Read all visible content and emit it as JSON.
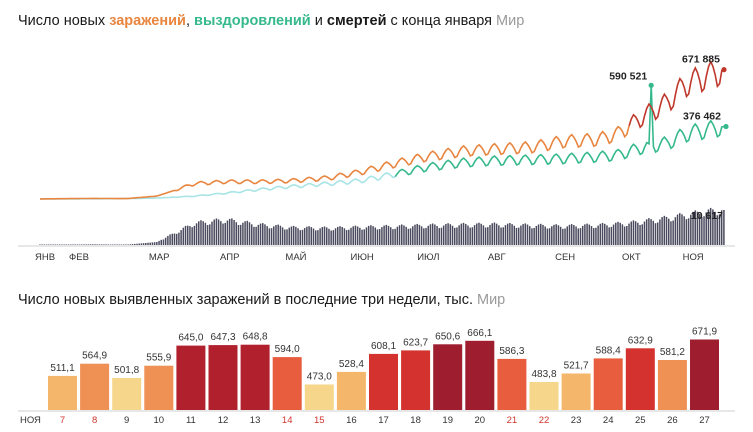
{
  "header": {
    "prefix": "Число новых ",
    "infections": "заражений",
    "sep1": ", ",
    "recoveries": "выздоровлений",
    "sep2": " и ",
    "deaths": "смертей",
    "suffix": " с конца января",
    "region": "Мир"
  },
  "header2": {
    "text": "Число новых выявленных заражений в последние три недели, тыс.",
    "region": "Мир"
  },
  "colors": {
    "infections": "#e8853f",
    "infections_late": "#c0382b",
    "recoveries": "#35b98c",
    "recoveries_early": "#a8e4e6",
    "deaths": "#4a4a5e"
  },
  "chart_data": [
    {
      "type": "line",
      "months": [
        "ЯНВ",
        "ФЕВ",
        "МАР",
        "АПР",
        "МАЙ",
        "ИЮН",
        "ИЮЛ",
        "АВГ",
        "СЕН",
        "ОКТ",
        "НОЯ"
      ],
      "annotations": [
        {
          "series": "infections",
          "label": "671 885",
          "value": 671885
        },
        {
          "series": "recoveries",
          "label": "590 521",
          "value": 590521
        },
        {
          "series": "recoveries",
          "label": "376 462",
          "value": 376462
        },
        {
          "series": "deaths",
          "label": "10 617",
          "value": 10617
        }
      ],
      "series": [
        {
          "name": "заражений",
          "key": "infections",
          "x_range": [
            "2020-01-22",
            "2020-11-27"
          ],
          "anchors": [
            [
              "2020-01-22",
              500
            ],
            [
              "2020-02-15",
              3000
            ],
            [
              "2020-03-01",
              2000
            ],
            [
              "2020-03-15",
              15000
            ],
            [
              "2020-04-01",
              80000
            ],
            [
              "2020-04-15",
              90000
            ],
            [
              "2020-05-01",
              90000
            ],
            [
              "2020-05-15",
              95000
            ],
            [
              "2020-06-01",
              110000
            ],
            [
              "2020-06-15",
              140000
            ],
            [
              "2020-07-01",
              185000
            ],
            [
              "2020-07-15",
              220000
            ],
            [
              "2020-08-01",
              250000
            ],
            [
              "2020-08-15",
              260000
            ],
            [
              "2020-09-01",
              270000
            ],
            [
              "2020-09-15",
              300000
            ],
            [
              "2020-10-01",
              310000
            ],
            [
              "2020-10-10",
              340000
            ],
            [
              "2020-10-20",
              420000
            ],
            [
              "2020-11-01",
              500000
            ],
            [
              "2020-11-10",
              600000
            ],
            [
              "2020-11-27",
              671885
            ]
          ]
        },
        {
          "name": "выздоровлений",
          "key": "recoveries",
          "x_range": [
            "2020-01-22",
            "2020-11-27"
          ],
          "anchors": [
            [
              "2020-01-22",
              0
            ],
            [
              "2020-02-15",
              1000
            ],
            [
              "2020-03-01",
              2000
            ],
            [
              "2020-03-15",
              5000
            ],
            [
              "2020-04-01",
              15000
            ],
            [
              "2020-04-15",
              30000
            ],
            [
              "2020-05-01",
              50000
            ],
            [
              "2020-05-15",
              65000
            ],
            [
              "2020-06-01",
              80000
            ],
            [
              "2020-06-15",
              95000
            ],
            [
              "2020-07-01",
              130000
            ],
            [
              "2020-07-15",
              165000
            ],
            [
              "2020-08-01",
              190000
            ],
            [
              "2020-08-15",
              200000
            ],
            [
              "2020-09-01",
              205000
            ],
            [
              "2020-09-15",
              210000
            ],
            [
              "2020-10-01",
              220000
            ],
            [
              "2020-10-10",
              230000
            ],
            [
              "2020-10-20",
              265000
            ],
            [
              "2020-11-01",
              290000
            ],
            [
              "2020-11-10",
              340000
            ],
            [
              "2020-11-27",
              376462
            ]
          ],
          "spike": [
            "2020-10-25",
            590521
          ]
        },
        {
          "name": "смертей",
          "key": "deaths",
          "x_range": [
            "2020-01-22",
            "2020-11-27"
          ],
          "anchors": [
            [
              "2020-01-22",
              0
            ],
            [
              "2020-02-15",
              200
            ],
            [
              "2020-03-01",
              100
            ],
            [
              "2020-03-15",
              900
            ],
            [
              "2020-04-01",
              6500
            ],
            [
              "2020-04-15",
              7500
            ],
            [
              "2020-05-01",
              6000
            ],
            [
              "2020-05-15",
              5200
            ],
            [
              "2020-06-01",
              5000
            ],
            [
              "2020-06-15",
              5300
            ],
            [
              "2020-07-01",
              5500
            ],
            [
              "2020-07-15",
              5800
            ],
            [
              "2020-08-01",
              6000
            ],
            [
              "2020-08-15",
              6100
            ],
            [
              "2020-09-01",
              5800
            ],
            [
              "2020-09-15",
              5600
            ],
            [
              "2020-10-01",
              5900
            ],
            [
              "2020-10-15",
              6500
            ],
            [
              "2020-11-01",
              8000
            ],
            [
              "2020-11-15",
              9500
            ],
            [
              "2020-11-27",
              10617
            ]
          ]
        }
      ]
    },
    {
      "type": "bar",
      "month_label": "НОЯ",
      "categories": [
        "7",
        "8",
        "9",
        "10",
        "11",
        "12",
        "13",
        "14",
        "15",
        "16",
        "17",
        "18",
        "19",
        "20",
        "21",
        "22",
        "23",
        "24",
        "25",
        "26",
        "27"
      ],
      "weekend": [
        true,
        true,
        false,
        false,
        false,
        false,
        false,
        true,
        true,
        false,
        false,
        false,
        false,
        false,
        true,
        true,
        false,
        false,
        false,
        false,
        false
      ],
      "values": [
        511.1,
        564.9,
        501.8,
        555.9,
        645.0,
        647.3,
        648.8,
        594.0,
        473.0,
        528.4,
        608.1,
        623.7,
        650.6,
        666.1,
        586.3,
        483.8,
        521.7,
        588.4,
        632.9,
        581.2,
        671.9
      ],
      "value_labels": [
        "511,1",
        "564,9",
        "501,8",
        "555,9",
        "645,0",
        "647,3",
        "648,8",
        "594,0",
        "473,0",
        "528,4",
        "608,1",
        "623,7",
        "650,6",
        "666,1",
        "586,3",
        "483,8",
        "521,7",
        "588,4",
        "632,9",
        "581,2",
        "671,9"
      ],
      "ylim": [
        0,
        700
      ]
    }
  ]
}
